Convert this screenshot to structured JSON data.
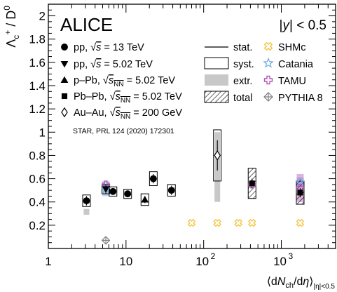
{
  "chart_data": {
    "type": "scatter",
    "x_scale": "log",
    "xlim": [
      1,
      5000
    ],
    "ylim": [
      0,
      2.1
    ],
    "grid": false,
    "experiment_label": "ALICE",
    "rapidity_label": "|y| < 0.5",
    "ylabel": "Λc+ / D0",
    "xlabel": "⟨dNch/dη⟩|η|<0.5",
    "x_ticks": [
      {
        "value": 1,
        "label": "1"
      },
      {
        "value": 10,
        "label": "10"
      },
      {
        "value": 100,
        "label": "10²"
      },
      {
        "value": 1000,
        "label": "10³"
      }
    ],
    "y_ticks": [
      {
        "value": 0.2,
        "label": "0.2"
      },
      {
        "value": 0.4,
        "label": "0.4"
      },
      {
        "value": 0.6,
        "label": "0.6"
      },
      {
        "value": 0.8,
        "label": "0.8"
      },
      {
        "value": 1.0,
        "label": "1"
      },
      {
        "value": 1.2,
        "label": "1.2"
      },
      {
        "value": 1.4,
        "label": "1.4"
      },
      {
        "value": 1.6,
        "label": "1.6"
      },
      {
        "value": 1.8,
        "label": "1.8"
      },
      {
        "value": 2.0,
        "label": "2"
      }
    ],
    "series": [
      {
        "name": "pp, √s = 13 TeV",
        "marker": "circle",
        "points": [
          {
            "x": 3.1,
            "y": 0.41,
            "stat": 0.04,
            "syst": 0.05,
            "extr": [
              0.34,
              0.29
            ]
          },
          {
            "x": 6.8,
            "y": 0.49,
            "stat": 0.02,
            "syst": 0.04
          },
          {
            "x": 10.5,
            "y": 0.47,
            "stat": 0.02,
            "syst": 0.04
          },
          {
            "x": 22.5,
            "y": 0.6,
            "stat": 0.04,
            "syst": 0.06
          },
          {
            "x": 38.5,
            "y": 0.5,
            "stat": 0.04,
            "syst": 0.05
          }
        ]
      },
      {
        "name": "pp, √s = 5.02 TeV",
        "marker": "triangle-down",
        "points": [
          {
            "x": 5.5,
            "y": 0.51,
            "stat": 0.04,
            "syst": 0.04
          }
        ]
      },
      {
        "name": "p–Pb, √sNN = 5.02 TeV",
        "marker": "triangle-up",
        "points": [
          {
            "x": 17.5,
            "y": 0.42,
            "stat": 0.03,
            "syst": 0.05
          }
        ]
      },
      {
        "name": "Pb–Pb, √sNN = 5.02 TeV",
        "marker": "square",
        "points": [
          {
            "x": 420,
            "y": 0.56,
            "stat": 0.04,
            "syst": 0.13,
            "hatched": true
          },
          {
            "x": 1750,
            "y": 0.48,
            "stat": 0.04,
            "syst": 0.1,
            "hatched": true
          }
        ]
      },
      {
        "name": "Au–Au, √sNN = 200 GeV",
        "marker": "diamond-open",
        "points": [
          {
            "x": 150,
            "y": 0.8,
            "stat": 0.13,
            "syst": 0.22,
            "extr": [
              1.0,
              0.4
            ]
          }
        ]
      }
    ],
    "models": [
      {
        "name": "SHMc",
        "marker": "cross-open",
        "color": "#f4c542",
        "points": [
          {
            "x": 70,
            "y": 0.22
          },
          {
            "x": 150,
            "y": 0.22
          },
          {
            "x": 280,
            "y": 0.22
          },
          {
            "x": 420,
            "y": 0.22
          },
          {
            "x": 1750,
            "y": 0.22
          }
        ]
      },
      {
        "name": "Catania",
        "marker": "star-open",
        "color": "#6fa8dc",
        "points": [
          {
            "x": 5.5,
            "y": 0.51,
            "band": [
              0.45,
              0.58
            ]
          },
          {
            "x": 1750,
            "y": 0.57,
            "band": [
              0.53,
              0.61
            ]
          }
        ]
      },
      {
        "name": "TAMU",
        "marker": "plus-open",
        "color": "#b455b6",
        "points": [
          {
            "x": 5.5,
            "y": 0.55
          },
          {
            "x": 420,
            "y": 0.55
          },
          {
            "x": 1750,
            "y": 0.52,
            "band": [
              0.4,
              0.64
            ]
          }
        ]
      },
      {
        "name": "PYTHIA 8",
        "marker": "diamond-cross",
        "color": "#808080",
        "points": [
          {
            "x": 5.5,
            "y": 0.07
          }
        ]
      }
    ],
    "legend_left": [
      {
        "marker": "circle",
        "label": "pp, √s = 13 TeV"
      },
      {
        "marker": "triangle-down",
        "label": "pp, √s = 5.02 TeV"
      },
      {
        "marker": "triangle-up",
        "label": "p–Pb, √sNN = 5.02 TeV"
      },
      {
        "marker": "square",
        "label": "Pb–Pb, √sNN = 5.02 TeV"
      },
      {
        "marker": "diamond-open",
        "label": "Au–Au, √sNN = 200 GeV"
      }
    ],
    "star_reference": "STAR, PRL 124 (2020) 172301",
    "legend_unc": [
      {
        "style": "line",
        "label": "stat."
      },
      {
        "style": "box",
        "label": "syst."
      },
      {
        "style": "gray",
        "label": "extr."
      },
      {
        "style": "hatch",
        "label": "total"
      }
    ],
    "legend_models": [
      {
        "marker": "cross-open",
        "color": "#f4c542",
        "label": "SHMc"
      },
      {
        "marker": "star-open",
        "color": "#6fa8dc",
        "label": "Catania"
      },
      {
        "marker": "plus-open",
        "color": "#b455b6",
        "label": "TAMU"
      },
      {
        "marker": "diamond-cross",
        "color": "#808080",
        "label": "PYTHIA 8"
      }
    ]
  }
}
